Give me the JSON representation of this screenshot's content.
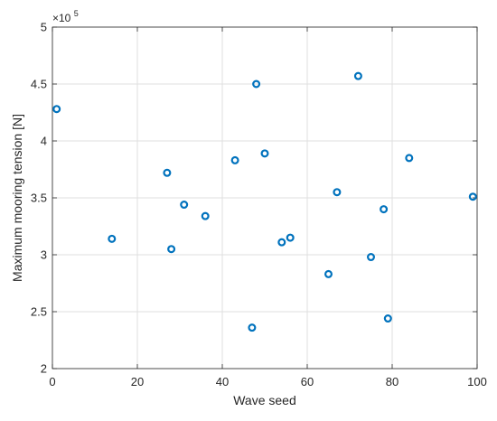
{
  "chart_data": {
    "type": "scatter",
    "title": "",
    "xlabel": "Wave seed",
    "ylabel": "Maximum mooring tension [N]",
    "y_exponent_label": "×10",
    "y_exponent": "5",
    "xlim": [
      0,
      100
    ],
    "ylim": [
      2,
      5
    ],
    "x_ticks": [
      0,
      20,
      40,
      60,
      80,
      100
    ],
    "y_ticks": [
      2,
      2.5,
      3,
      3.5,
      4,
      4.5,
      5
    ],
    "x_tick_labels": [
      "0",
      "20",
      "40",
      "60",
      "80",
      "100"
    ],
    "y_tick_labels": [
      "2",
      "2.5",
      "3",
      "3.5",
      "4",
      "4.5",
      "5"
    ],
    "grid": true,
    "marker": "circle-open",
    "marker_color": "#0072BD",
    "series": [
      {
        "x": [
          1,
          14,
          27,
          28,
          31,
          36,
          43,
          47,
          48,
          50,
          54,
          56,
          65,
          67,
          72,
          75,
          78,
          79,
          84,
          99
        ],
        "y": [
          4.28,
          3.14,
          3.72,
          3.05,
          3.44,
          3.34,
          3.83,
          2.36,
          4.5,
          3.89,
          3.11,
          3.15,
          2.83,
          3.55,
          4.57,
          2.98,
          3.4,
          2.44,
          3.85,
          3.51
        ]
      }
    ]
  }
}
